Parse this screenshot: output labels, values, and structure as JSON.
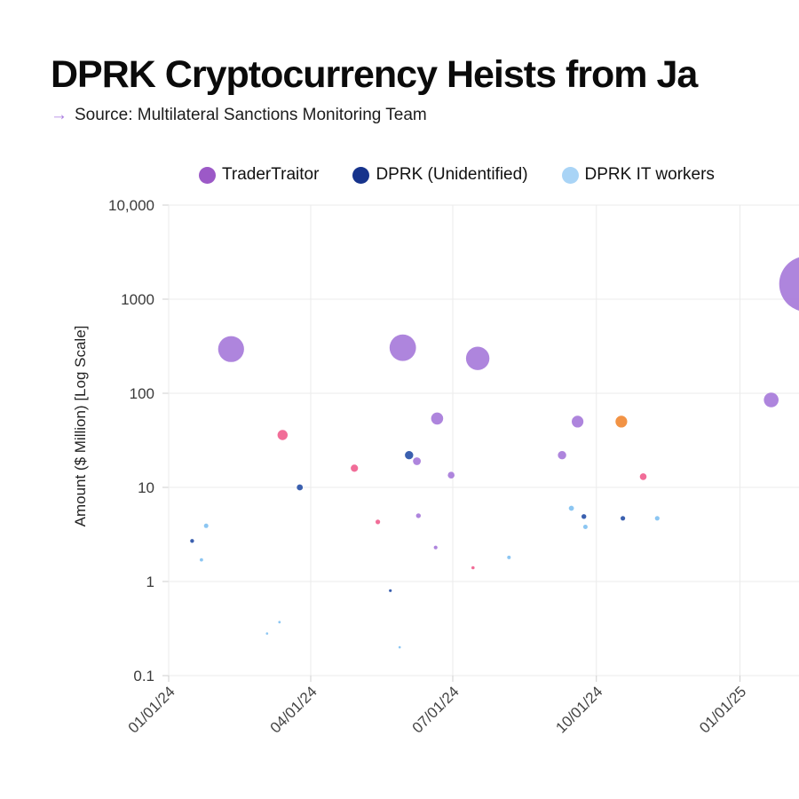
{
  "header": {
    "title": "DPRK Cryptocurrency Heists from Ja",
    "arrow": "→",
    "source": "Source: Multilateral Sanctions Monitoring Team"
  },
  "chart_data": {
    "type": "scatter",
    "subtype": "bubble",
    "title": "DPRK Cryptocurrency Heists from Ja",
    "xlabel": "",
    "ylabel": "Amount ($ Million) [Log Scale]",
    "y_scale": "log",
    "ylim": [
      0.1,
      10000
    ],
    "grid": true,
    "legend_position": "top",
    "x_axis": {
      "tick_labels": [
        "01/01/24",
        "04/01/24",
        "07/01/24",
        "10/01/24",
        "01/01/25"
      ],
      "tick_dates": [
        "2024-01-01",
        "2024-04-01",
        "2024-07-01",
        "2024-10-01",
        "2025-01-01"
      ]
    },
    "y_axis": {
      "tick_labels": [
        "10,000",
        "1000",
        "100",
        "10",
        "1",
        "0.1"
      ],
      "tick_values": [
        10000,
        1000,
        100,
        10,
        1,
        0.1
      ]
    },
    "bubble_size_meaning": "amount ($ million)",
    "series": [
      {
        "id": "tradertraitor",
        "name": "TraderTraitor",
        "in_legend": true,
        "legend_color": "#9c59c7",
        "plot_color": "#a77bda",
        "points": [
          {
            "date": "2024-02-10",
            "amount": 295
          },
          {
            "date": "2024-05-30",
            "amount": 305
          },
          {
            "date": "2024-07-17",
            "amount": 235
          },
          {
            "date": "2024-06-21",
            "amount": 54
          },
          {
            "date": "2024-06-08",
            "amount": 19
          },
          {
            "date": "2024-06-09",
            "amount": 5
          },
          {
            "date": "2024-06-30",
            "amount": 13.5
          },
          {
            "date": "2024-06-20",
            "amount": 2.3
          },
          {
            "date": "2024-09-09",
            "amount": 22
          },
          {
            "date": "2024-09-19",
            "amount": 50
          },
          {
            "date": "2025-01-21",
            "amount": 85
          },
          {
            "date": "2025-02-13",
            "amount": 1450
          }
        ]
      },
      {
        "id": "dprk-unidentified",
        "name": "DPRK (Unidentified)",
        "in_legend": true,
        "legend_color": "#16338c",
        "plot_color": "#2a52a8",
        "points": [
          {
            "date": "2024-01-16",
            "amount": 2.7
          },
          {
            "date": "2024-03-25",
            "amount": 10
          },
          {
            "date": "2024-05-22",
            "amount": 0.8
          },
          {
            "date": "2024-06-03",
            "amount": 22
          },
          {
            "date": "2024-09-23",
            "amount": 4.9
          },
          {
            "date": "2024-10-18",
            "amount": 4.7
          }
        ]
      },
      {
        "id": "dprk-it-workers",
        "name": "DPRK IT workers",
        "in_legend": true,
        "legend_color": "#a9d4f6",
        "plot_color": "#82c1f1",
        "points": [
          {
            "date": "2024-01-22",
            "amount": 1.7
          },
          {
            "date": "2024-01-25",
            "amount": 3.9
          },
          {
            "date": "2024-03-04",
            "amount": 0.28
          },
          {
            "date": "2024-03-12",
            "amount": 0.37
          },
          {
            "date": "2024-05-28",
            "amount": 0.2
          },
          {
            "date": "2024-08-06",
            "amount": 1.8
          },
          {
            "date": "2024-09-15",
            "amount": 6
          },
          {
            "date": "2024-09-24",
            "amount": 3.8
          },
          {
            "date": "2024-11-09",
            "amount": 4.7
          }
        ]
      },
      {
        "id": "pink-series",
        "name": "",
        "in_legend": false,
        "legend_color": "#f0618f",
        "plot_color": "#f0618f",
        "points": [
          {
            "date": "2024-03-14",
            "amount": 36
          },
          {
            "date": "2024-04-29",
            "amount": 16
          },
          {
            "date": "2024-05-14",
            "amount": 4.3
          },
          {
            "date": "2024-07-14",
            "amount": 1.4
          },
          {
            "date": "2024-10-31",
            "amount": 13
          }
        ]
      },
      {
        "id": "orange-series",
        "name": "",
        "in_legend": false,
        "legend_color": "#f18a35",
        "plot_color": "#f18a35",
        "points": [
          {
            "date": "2024-10-17",
            "amount": 50
          }
        ]
      }
    ]
  }
}
